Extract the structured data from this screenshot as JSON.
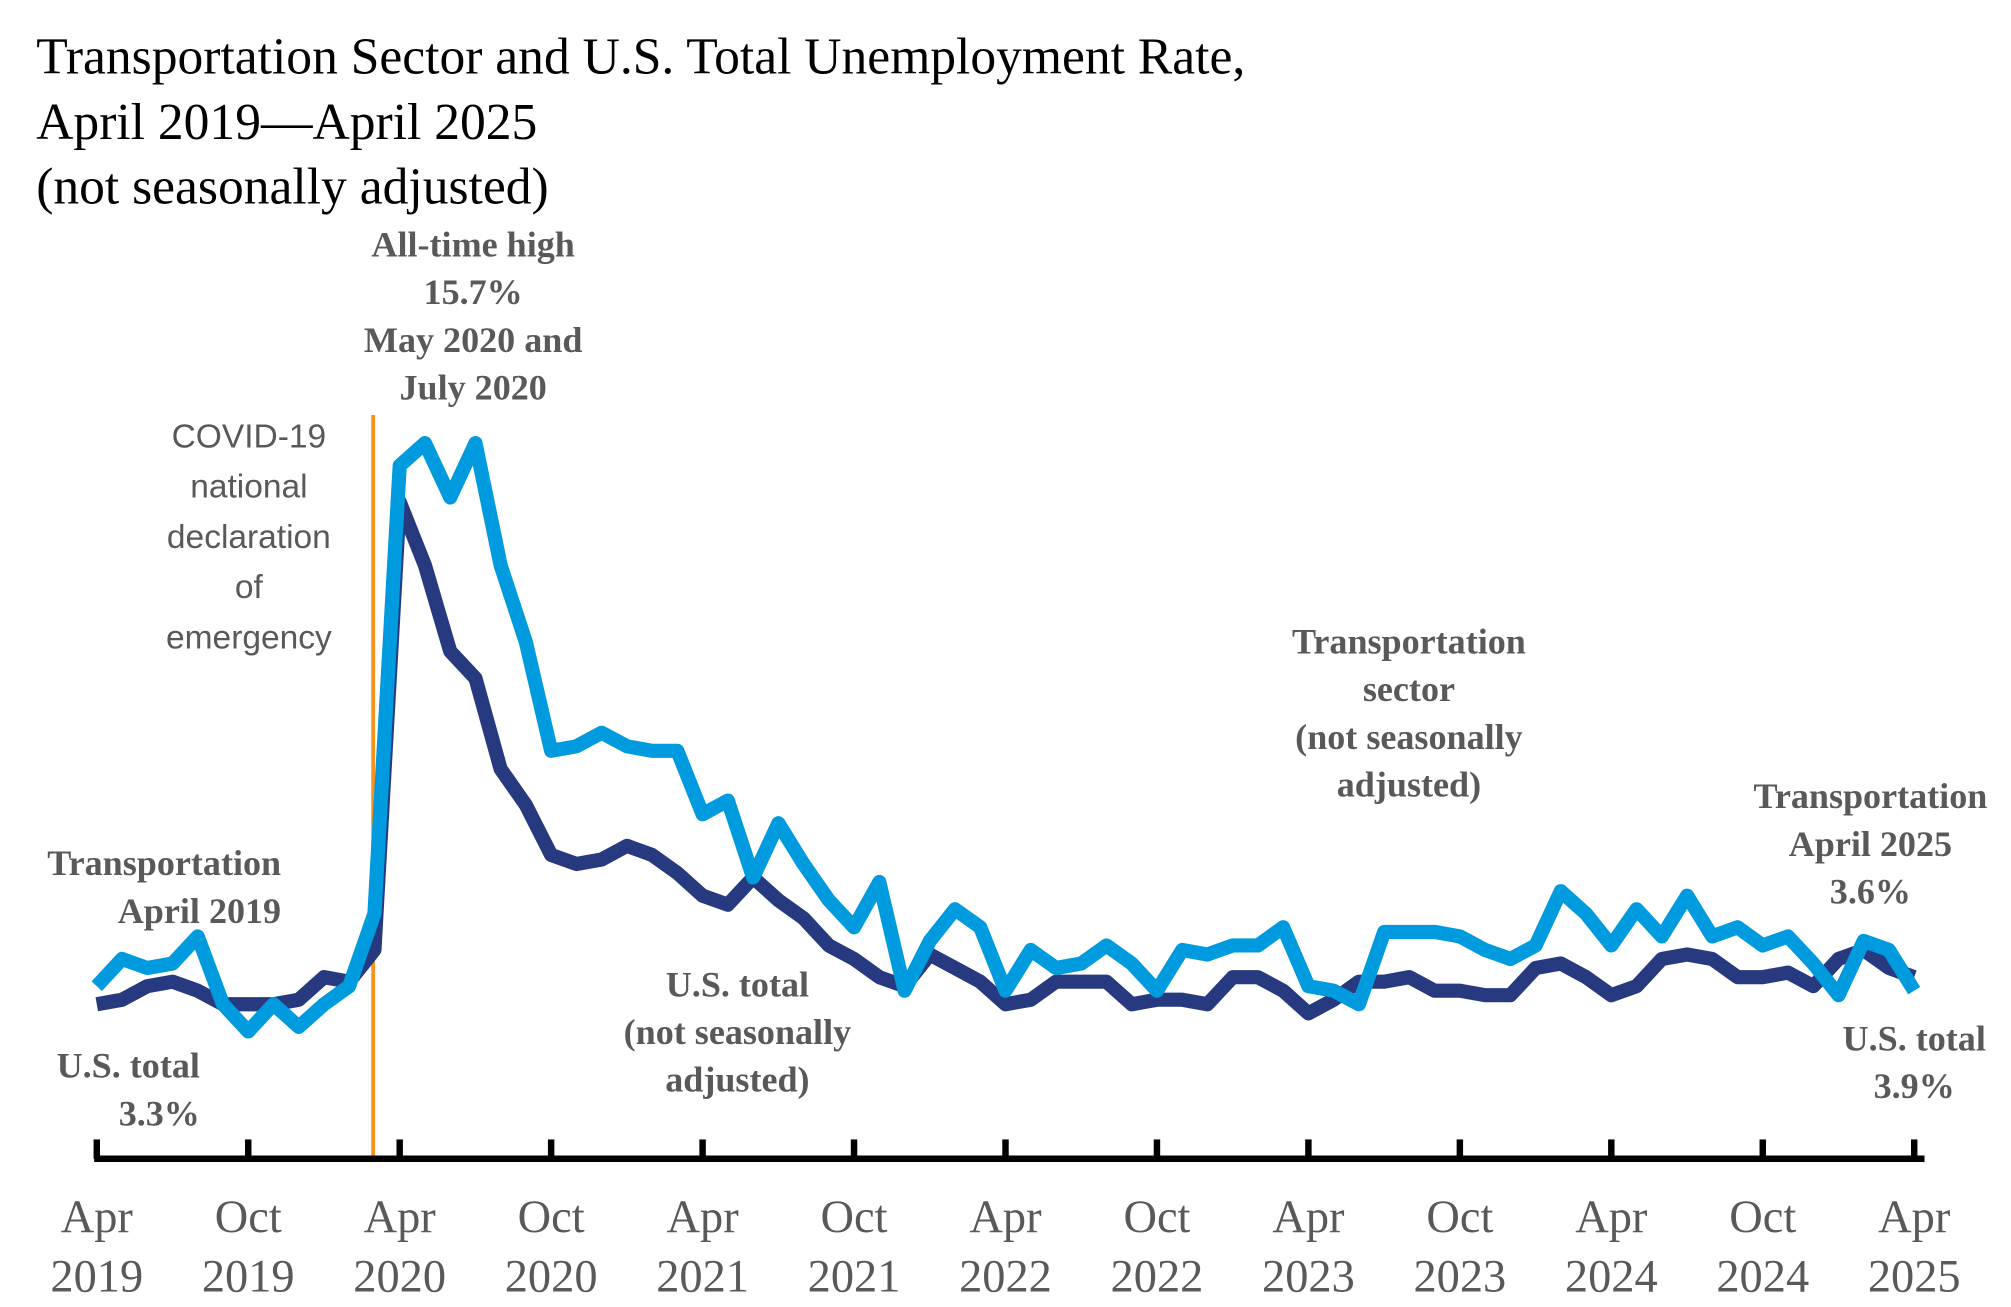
{
  "chart_data": {
    "type": "line",
    "title": [
      "Transportation Sector and U.S. Total Unemployment Rate,",
      "April 2019—April 2025",
      "(not seasonally adjusted)"
    ],
    "xlabel": "",
    "ylabel": "",
    "ylim": [
      0,
      18
    ],
    "grid": false,
    "legend": "none",
    "x": [
      "2019-04",
      "2019-05",
      "2019-06",
      "2019-07",
      "2019-08",
      "2019-09",
      "2019-10",
      "2019-11",
      "2019-12",
      "2020-01",
      "2020-02",
      "2020-03",
      "2020-04",
      "2020-05",
      "2020-06",
      "2020-07",
      "2020-08",
      "2020-09",
      "2020-10",
      "2020-11",
      "2020-12",
      "2021-01",
      "2021-02",
      "2021-03",
      "2021-04",
      "2021-05",
      "2021-06",
      "2021-07",
      "2021-08",
      "2021-09",
      "2021-10",
      "2021-11",
      "2021-12",
      "2022-01",
      "2022-02",
      "2022-03",
      "2022-04",
      "2022-05",
      "2022-06",
      "2022-07",
      "2022-08",
      "2022-09",
      "2022-10",
      "2022-11",
      "2022-12",
      "2023-01",
      "2023-02",
      "2023-03",
      "2023-04",
      "2023-05",
      "2023-06",
      "2023-07",
      "2023-08",
      "2023-09",
      "2023-10",
      "2023-11",
      "2023-12",
      "2024-01",
      "2024-02",
      "2024-03",
      "2024-04",
      "2024-05",
      "2024-06",
      "2024-07",
      "2024-08",
      "2024-09",
      "2024-10",
      "2024-11",
      "2024-12",
      "2025-01",
      "2025-02",
      "2025-03",
      "2025-04"
    ],
    "series": [
      {
        "key": "transportation",
        "color": "#009ADE",
        "values": [
          3.7,
          4.3,
          4.1,
          4.2,
          4.8,
          3.3,
          2.7,
          3.3,
          2.8,
          3.3,
          3.7,
          5.3,
          15.2,
          15.7,
          14.5,
          15.7,
          13.0,
          11.3,
          8.9,
          9.0,
          9.3,
          9.0,
          8.9,
          8.9,
          7.5,
          7.8,
          6.1,
          7.3,
          6.4,
          5.6,
          5.0,
          6.0,
          3.6,
          4.7,
          5.4,
          5.0,
          3.6,
          4.5,
          4.1,
          4.2,
          4.6,
          4.2,
          3.6,
          4.5,
          4.4,
          4.6,
          4.6,
          5.0,
          3.7,
          3.6,
          3.3,
          4.9,
          4.9,
          4.9,
          4.8,
          4.5,
          4.3,
          4.6,
          5.8,
          5.3,
          4.6,
          5.4,
          4.8,
          5.7,
          4.8,
          5.0,
          4.6,
          4.8,
          4.2,
          3.5,
          4.7,
          4.5,
          3.6
        ]
      },
      {
        "key": "us_total",
        "color": "#273A80",
        "values": [
          3.3,
          3.4,
          3.7,
          3.8,
          3.6,
          3.3,
          3.3,
          3.3,
          3.4,
          3.9,
          3.8,
          4.5,
          14.4,
          13.0,
          11.1,
          10.5,
          8.5,
          7.7,
          6.6,
          6.4,
          6.5,
          6.8,
          6.6,
          6.2,
          5.7,
          5.5,
          6.1,
          5.6,
          5.2,
          4.6,
          4.3,
          3.9,
          3.7,
          4.4,
          4.1,
          3.8,
          3.3,
          3.4,
          3.8,
          3.8,
          3.8,
          3.3,
          3.4,
          3.4,
          3.3,
          3.9,
          3.9,
          3.6,
          3.1,
          3.4,
          3.8,
          3.8,
          3.9,
          3.6,
          3.6,
          3.5,
          3.5,
          4.1,
          4.2,
          3.9,
          3.5,
          3.7,
          4.3,
          4.4,
          4.3,
          3.9,
          3.9,
          4.0,
          3.7,
          4.3,
          4.5,
          4.1,
          3.9
        ]
      }
    ],
    "tick_labels": [
      [
        "Apr",
        "2019"
      ],
      [
        "Oct",
        "2019"
      ],
      [
        "Apr",
        "2020"
      ],
      [
        "Oct",
        "2020"
      ],
      [
        "Apr",
        "2021"
      ],
      [
        "Oct",
        "2021"
      ],
      [
        "Apr",
        "2022"
      ],
      [
        "Oct",
        "2022"
      ],
      [
        "Apr",
        "2023"
      ],
      [
        "Oct",
        "2023"
      ],
      [
        "Apr",
        "2024"
      ],
      [
        "Oct",
        "2024"
      ],
      [
        "Apr",
        "2025"
      ]
    ],
    "event_line": {
      "date": "2020-03",
      "color": "#F7941D",
      "label": [
        "COVID-19",
        "national",
        "declaration",
        "of",
        "emergency"
      ]
    },
    "annotations": {
      "all_time_high": [
        "All-time high",
        "15.7%",
        "May 2020 and",
        "July 2020"
      ],
      "trans_start": [
        "Transportation",
        "April 2019"
      ],
      "us_start": [
        "U.S. total",
        "3.3%"
      ],
      "us_mid": [
        "U.S. total",
        "(not seasonally",
        "adjusted)"
      ],
      "trans_mid": [
        "Transportation",
        "sector",
        "(not seasonally",
        "adjusted)"
      ],
      "trans_end": [
        "Transportation",
        "April 2025",
        "3.6%"
      ],
      "us_end": [
        "U.S. total",
        "3.9%"
      ]
    }
  }
}
